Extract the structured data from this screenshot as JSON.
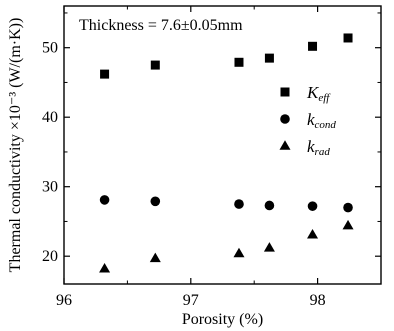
{
  "chart_data": {
    "type": "scatter",
    "xlabel": "Porosity (%)",
    "ylabel": "Thermal conductivity ×10⁻³ (W/(m·K))",
    "annotation": "Thickness = 7.6±0.05mm",
    "xlim": [
      96,
      98.5
    ],
    "ylim": [
      16,
      56
    ],
    "xticks": [
      96,
      97,
      98
    ],
    "yticks": [
      20,
      30,
      40,
      50
    ],
    "x": [
      96.32,
      96.72,
      97.38,
      97.62,
      97.96,
      98.24
    ],
    "series": [
      {
        "name": "K",
        "subscript": "eff",
        "marker": "square",
        "values": [
          46.2,
          47.5,
          47.9,
          48.5,
          50.2,
          51.4
        ]
      },
      {
        "name": "k",
        "subscript": "cond",
        "marker": "circle",
        "values": [
          28.1,
          27.9,
          27.5,
          27.3,
          27.2,
          27.0
        ]
      },
      {
        "name": "k",
        "subscript": "rad",
        "marker": "triangle",
        "values": [
          18.2,
          19.7,
          20.4,
          21.2,
          23.1,
          24.4
        ]
      }
    ],
    "legend_position": "right",
    "grid": false
  }
}
